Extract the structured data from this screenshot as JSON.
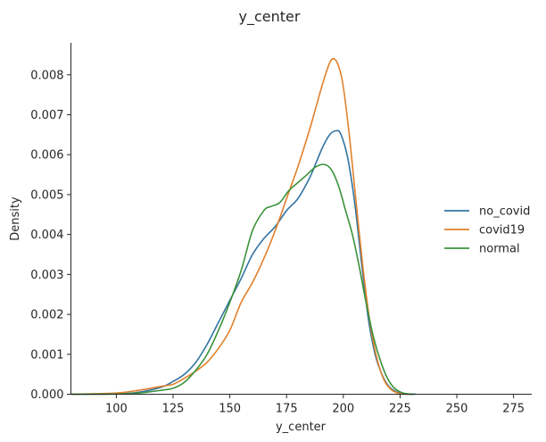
{
  "chart_data": {
    "type": "line",
    "title": "y_center",
    "xlabel": "y_center",
    "ylabel": "Density",
    "xlim": [
      80,
      283
    ],
    "ylim": [
      0,
      0.0088
    ],
    "xticks": [
      100,
      125,
      150,
      175,
      200,
      225,
      250,
      275
    ],
    "yticks": [
      0.0,
      0.001,
      0.002,
      0.003,
      0.004,
      0.005,
      0.006,
      0.007,
      0.008
    ],
    "ytick_labels": [
      "0.000",
      "0.001",
      "0.002",
      "0.003",
      "0.004",
      "0.005",
      "0.006",
      "0.007",
      "0.008"
    ],
    "grid": false,
    "legend_position": "right",
    "series": [
      {
        "name": "no_covid",
        "color": "#3274a1",
        "x": [
          80,
          100,
          110,
          120,
          125,
          130,
          135,
          140,
          145,
          150,
          155,
          160,
          165,
          170,
          175,
          180,
          185,
          188,
          191,
          194,
          197,
          199,
          202,
          205,
          208,
          211,
          214,
          217,
          220,
          223,
          226,
          229,
          232
        ],
        "y": [
          0,
          1e-05,
          5e-05,
          0.00018,
          0.00032,
          0.0005,
          0.0008,
          0.00125,
          0.0018,
          0.00235,
          0.0029,
          0.0035,
          0.0039,
          0.0042,
          0.0046,
          0.0049,
          0.0054,
          0.0058,
          0.0062,
          0.0065,
          0.0066,
          0.0065,
          0.0059,
          0.0048,
          0.0033,
          0.0019,
          0.001,
          0.0005,
          0.0002,
          7e-05,
          2e-05,
          5e-06,
          0
        ]
      },
      {
        "name": "covid19",
        "color": "#e1812c",
        "x": [
          80,
          100,
          110,
          120,
          125,
          130,
          135,
          140,
          145,
          150,
          155,
          160,
          165,
          170,
          175,
          180,
          185,
          188,
          191,
          194,
          196,
          198,
          200,
          203,
          206,
          209,
          212,
          215,
          218,
          221,
          224,
          227,
          230
        ],
        "y": [
          0,
          3e-05,
          0.0001,
          0.0002,
          0.00025,
          0.0004,
          0.00058,
          0.0008,
          0.00115,
          0.0016,
          0.0023,
          0.0028,
          0.0034,
          0.0041,
          0.0049,
          0.0057,
          0.0066,
          0.0072,
          0.0078,
          0.0083,
          0.0084,
          0.0082,
          0.0077,
          0.0063,
          0.0046,
          0.003,
          0.0017,
          0.00085,
          0.00035,
          0.00012,
          3e-05,
          5e-06,
          0
        ]
      },
      {
        "name": "normal",
        "color": "#3a923a",
        "x": [
          80,
          100,
          110,
          120,
          125,
          130,
          135,
          140,
          145,
          150,
          155,
          160,
          165,
          168,
          172,
          176,
          180,
          184,
          188,
          192,
          195,
          198,
          201,
          204,
          207,
          210,
          213,
          216,
          219,
          222,
          225,
          228,
          231
        ],
        "y": [
          0,
          5e-06,
          3e-05,
          0.0001,
          0.00015,
          0.0003,
          0.0006,
          0.001,
          0.0016,
          0.0023,
          0.0031,
          0.0041,
          0.0046,
          0.0047,
          0.0048,
          0.0051,
          0.0053,
          0.0055,
          0.0057,
          0.00575,
          0.0056,
          0.0052,
          0.0046,
          0.004,
          0.0032,
          0.0023,
          0.0015,
          0.0009,
          0.00045,
          0.00018,
          6e-05,
          1e-05,
          0
        ]
      }
    ]
  }
}
